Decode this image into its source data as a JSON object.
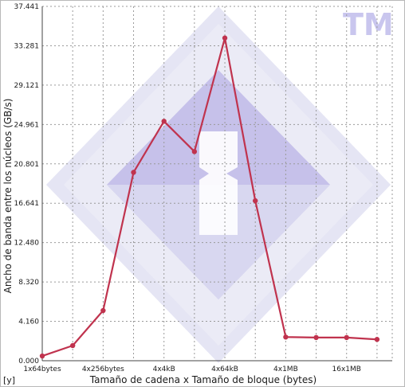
{
  "chart_data": {
    "type": "line",
    "title": "",
    "xlabel": "Tamaño de cadena x Tamaño de bloque (bytes)",
    "ylabel": "Ancho de banda entre los núcleos (GB/s)",
    "corner_label": "[y]",
    "watermark_text": "TM",
    "x_tick_labels": [
      "1x64bytes",
      "4x256bytes",
      "4x4kB",
      "4x64kB",
      "4x1MB",
      "16x1MB"
    ],
    "y_tick_labels": [
      "0.000",
      "4.160",
      "8.320",
      "12.480",
      "16.641",
      "20.801",
      "24.961",
      "29.121",
      "33.281",
      "37.441"
    ],
    "ylim": [
      0,
      37.441
    ],
    "xlim": [
      0,
      11.5
    ],
    "grid": true,
    "series": [
      {
        "color": "#c0334e",
        "x": [
          0,
          1,
          2,
          3,
          4,
          5,
          6,
          7,
          8,
          9,
          10,
          11
        ],
        "values": [
          0.5,
          1.6,
          5.3,
          19.9,
          25.3,
          22.1,
          34.1,
          16.9,
          2.5,
          2.45,
          2.45,
          2.25
        ]
      }
    ]
  }
}
